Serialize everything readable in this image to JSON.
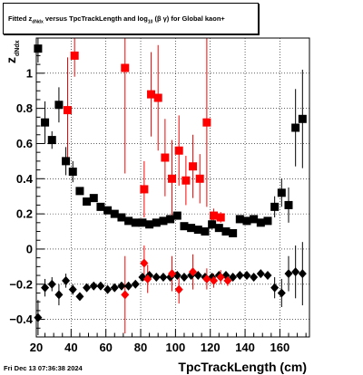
{
  "chart_data": {
    "type": "scatter",
    "title": "Fitted z_dNdx versus TpcTrackLength and log10(βγ) for Global kaon+",
    "title_parts": {
      "prefix": "Fitted",
      "var": "z",
      "var_sub": "dNdx",
      "mid": "versus TpcTrackLength and log",
      "log_sub": "10",
      "paren": "(β γ)",
      "suffix": "for Global kaon+"
    },
    "xlabel": "TpcTrackLength (cm)",
    "ylabel": "z",
    "ylabel_sub": "dNdx",
    "xlim": [
      20,
      177
    ],
    "ylim": [
      -0.5,
      1.2
    ],
    "x_ticks": [
      20,
      40,
      60,
      80,
      100,
      120,
      140,
      160
    ],
    "y_ticks": [
      -0.4,
      -0.2,
      0,
      0.2,
      0.4,
      0.6,
      0.8,
      1
    ],
    "x_tick_labels": [
      "20",
      "40",
      "60",
      "80",
      "100",
      "120",
      "140",
      "160"
    ],
    "y_tick_labels": [
      "−0.4",
      "−0.2",
      "0",
      "0.2",
      "0.4",
      "0.6",
      "0.8",
      "1"
    ],
    "grid": true,
    "series": [
      {
        "marker": "square",
        "color": "#000000",
        "points": [
          {
            "x": 21,
            "y": 1.14,
            "err": 0.08
          },
          {
            "x": 25,
            "y": 0.72,
            "err": 0.12
          },
          {
            "x": 29,
            "y": 0.62,
            "err": 0.05
          },
          {
            "x": 33,
            "y": 0.82,
            "err": 0.1
          },
          {
            "x": 37,
            "y": 0.5,
            "err": 0.08
          },
          {
            "x": 41,
            "y": 0.44,
            "err": 0.06
          },
          {
            "x": 45,
            "y": 0.33,
            "err": 0.02
          },
          {
            "x": 49,
            "y": 0.27,
            "err": 0.02
          },
          {
            "x": 53,
            "y": 0.29,
            "err": 0.02
          },
          {
            "x": 57,
            "y": 0.24,
            "err": 0.02
          },
          {
            "x": 61,
            "y": 0.22,
            "err": 0.02
          },
          {
            "x": 65,
            "y": 0.2,
            "err": 0.02
          },
          {
            "x": 69,
            "y": 0.18,
            "err": 0.02
          },
          {
            "x": 73,
            "y": 0.16,
            "err": 0.02
          },
          {
            "x": 77,
            "y": 0.15,
            "err": 0.02
          },
          {
            "x": 81,
            "y": 0.15,
            "err": 0.02
          },
          {
            "x": 85,
            "y": 0.14,
            "err": 0.02
          },
          {
            "x": 89,
            "y": 0.15,
            "err": 0.02
          },
          {
            "x": 93,
            "y": 0.16,
            "err": 0.02
          },
          {
            "x": 97,
            "y": 0.17,
            "err": 0.02
          },
          {
            "x": 101,
            "y": 0.19,
            "err": 0.02
          },
          {
            "x": 105,
            "y": 0.13,
            "err": 0.02
          },
          {
            "x": 109,
            "y": 0.12,
            "err": 0.02
          },
          {
            "x": 113,
            "y": 0.11,
            "err": 0.02
          },
          {
            "x": 117,
            "y": 0.1,
            "err": 0.02
          },
          {
            "x": 121,
            "y": 0.14,
            "err": 0.03
          },
          {
            "x": 125,
            "y": 0.12,
            "err": 0.02
          },
          {
            "x": 129,
            "y": 0.1,
            "err": 0.02
          },
          {
            "x": 133,
            "y": 0.09,
            "err": 0.02
          },
          {
            "x": 137,
            "y": 0.17,
            "err": 0.02
          },
          {
            "x": 141,
            "y": 0.16,
            "err": 0.02
          },
          {
            "x": 145,
            "y": 0.17,
            "err": 0.02
          },
          {
            "x": 149,
            "y": 0.15,
            "err": 0.02
          },
          {
            "x": 153,
            "y": 0.16,
            "err": 0.02
          },
          {
            "x": 157,
            "y": 0.24,
            "err": 0.06
          },
          {
            "x": 161,
            "y": 0.32,
            "err": 0.08
          },
          {
            "x": 165,
            "y": 0.25,
            "err": 0.1
          },
          {
            "x": 169,
            "y": 0.69,
            "err": 0.22
          },
          {
            "x": 173,
            "y": 0.74,
            "err": 0.28
          }
        ]
      },
      {
        "marker": "square",
        "color": "#ff0000",
        "points": [
          {
            "x": 38,
            "y": 0.79,
            "err": 0.3
          },
          {
            "x": 42,
            "y": 1.1,
            "err": 0.12
          },
          {
            "x": 71,
            "y": 1.03,
            "err": 0.6
          },
          {
            "x": 82,
            "y": 0.34,
            "err": 0.16
          },
          {
            "x": 86,
            "y": 0.88,
            "err": 0.24
          },
          {
            "x": 90,
            "y": 0.86,
            "err": 0.3
          },
          {
            "x": 94,
            "y": 0.52,
            "err": 0.22
          },
          {
            "x": 98,
            "y": 0.4,
            "err": 0.22
          },
          {
            "x": 102,
            "y": 0.56,
            "err": 0.2
          },
          {
            "x": 106,
            "y": 0.39,
            "err": 0.14
          },
          {
            "x": 110,
            "y": 0.47,
            "err": 0.18
          },
          {
            "x": 114,
            "y": 0.4,
            "err": 0.14
          },
          {
            "x": 118,
            "y": 0.72,
            "err": 0.48
          },
          {
            "x": 122,
            "y": 0.19,
            "err": 0.04
          },
          {
            "x": 126,
            "y": 0.18,
            "err": 0.03
          }
        ]
      },
      {
        "marker": "diamond",
        "color": "#000000",
        "points": [
          {
            "x": 21,
            "y": -0.39,
            "err": 0.1
          },
          {
            "x": 25,
            "y": -0.22,
            "err": 0.05
          },
          {
            "x": 29,
            "y": -0.2,
            "err": 0.04
          },
          {
            "x": 33,
            "y": -0.26,
            "err": 0.06
          },
          {
            "x": 37,
            "y": -0.18,
            "err": 0.04
          },
          {
            "x": 41,
            "y": -0.23,
            "err": 0.03
          },
          {
            "x": 45,
            "y": -0.27,
            "err": 0.02
          },
          {
            "x": 49,
            "y": -0.22,
            "err": 0.02
          },
          {
            "x": 53,
            "y": -0.21,
            "err": 0.02
          },
          {
            "x": 57,
            "y": -0.21,
            "err": 0.02
          },
          {
            "x": 61,
            "y": -0.23,
            "err": 0.02
          },
          {
            "x": 65,
            "y": -0.22,
            "err": 0.02
          },
          {
            "x": 69,
            "y": -0.21,
            "err": 0.02
          },
          {
            "x": 73,
            "y": -0.21,
            "err": 0.02
          },
          {
            "x": 77,
            "y": -0.2,
            "err": 0.02
          },
          {
            "x": 81,
            "y": -0.16,
            "err": 0.02
          },
          {
            "x": 85,
            "y": -0.15,
            "err": 0.02
          },
          {
            "x": 89,
            "y": -0.16,
            "err": 0.02
          },
          {
            "x": 93,
            "y": -0.16,
            "err": 0.02
          },
          {
            "x": 97,
            "y": -0.16,
            "err": 0.02
          },
          {
            "x": 101,
            "y": -0.15,
            "err": 0.02
          },
          {
            "x": 105,
            "y": -0.16,
            "err": 0.02
          },
          {
            "x": 109,
            "y": -0.15,
            "err": 0.02
          },
          {
            "x": 113,
            "y": -0.15,
            "err": 0.02
          },
          {
            "x": 117,
            "y": -0.16,
            "err": 0.02
          },
          {
            "x": 121,
            "y": -0.16,
            "err": 0.02
          },
          {
            "x": 125,
            "y": -0.15,
            "err": 0.02
          },
          {
            "x": 129,
            "y": -0.15,
            "err": 0.02
          },
          {
            "x": 133,
            "y": -0.16,
            "err": 0.02
          },
          {
            "x": 137,
            "y": -0.15,
            "err": 0.02
          },
          {
            "x": 141,
            "y": -0.15,
            "err": 0.02
          },
          {
            "x": 145,
            "y": -0.16,
            "err": 0.02
          },
          {
            "x": 149,
            "y": -0.14,
            "err": 0.02
          },
          {
            "x": 153,
            "y": -0.15,
            "err": 0.02
          },
          {
            "x": 157,
            "y": -0.22,
            "err": 0.06
          },
          {
            "x": 161,
            "y": -0.25,
            "err": 0.08
          },
          {
            "x": 165,
            "y": -0.14,
            "err": 0.1
          },
          {
            "x": 169,
            "y": -0.13,
            "err": 0.15
          },
          {
            "x": 173,
            "y": -0.14,
            "err": 0.18
          }
        ]
      },
      {
        "marker": "diamond",
        "color": "#ff0000",
        "points": [
          {
            "x": 71,
            "y": -0.26,
            "err": 0.22
          },
          {
            "x": 82,
            "y": -0.08,
            "err": 0.1
          },
          {
            "x": 84,
            "y": -0.17,
            "err": 0.08
          },
          {
            "x": 98,
            "y": -0.14,
            "err": 0.1
          },
          {
            "x": 102,
            "y": -0.23,
            "err": 0.08
          },
          {
            "x": 110,
            "y": -0.13,
            "err": 0.1
          },
          {
            "x": 118,
            "y": -0.17,
            "err": 0.06
          },
          {
            "x": 122,
            "y": -0.18,
            "err": 0.04
          },
          {
            "x": 126,
            "y": -0.16,
            "err": 0.04
          },
          {
            "x": 130,
            "y": -0.18,
            "err": 0.03
          }
        ]
      }
    ]
  },
  "footer": {
    "timestamp": "Fri Dec 13 07:36:38 2024"
  }
}
